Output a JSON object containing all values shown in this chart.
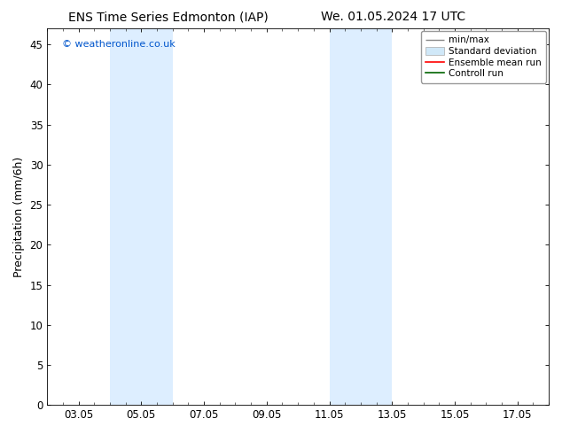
{
  "title_left": "ENS Time Series Edmonton (IAP)",
  "title_right": "We. 01.05.2024 17 UTC",
  "ylabel": "Precipitation (mm/6h)",
  "xlim": [
    2.0,
    18.0
  ],
  "ylim": [
    0,
    47
  ],
  "yticks": [
    0,
    5,
    10,
    15,
    20,
    25,
    30,
    35,
    40,
    45
  ],
  "xtick_positions": [
    3,
    5,
    7,
    9,
    11,
    13,
    15,
    17
  ],
  "xtick_labels": [
    "03.05",
    "05.05",
    "07.05",
    "09.05",
    "11.05",
    "13.05",
    "15.05",
    "17.05"
  ],
  "shaded_regions": [
    {
      "xmin": 4.0,
      "xmax": 5.0,
      "color": "#ddeeff"
    },
    {
      "xmin": 5.0,
      "xmax": 6.0,
      "color": "#ddeeff"
    },
    {
      "xmin": 11.0,
      "xmax": 12.0,
      "color": "#ddeeff"
    },
    {
      "xmin": 12.0,
      "xmax": 13.0,
      "color": "#ddeeff"
    }
  ],
  "watermark": "© weatheronline.co.uk",
  "watermark_color": "#0055cc",
  "legend_entries": [
    {
      "label": "min/max"
    },
    {
      "label": "Standard deviation"
    },
    {
      "label": "Ensemble mean run"
    },
    {
      "label": "Controll run"
    }
  ],
  "bg_color": "#ffffff",
  "plot_bg_color": "#ffffff",
  "border_color": "#000000",
  "title_fontsize": 10,
  "axis_label_fontsize": 9,
  "tick_fontsize": 8.5,
  "legend_fontsize": 7.5
}
